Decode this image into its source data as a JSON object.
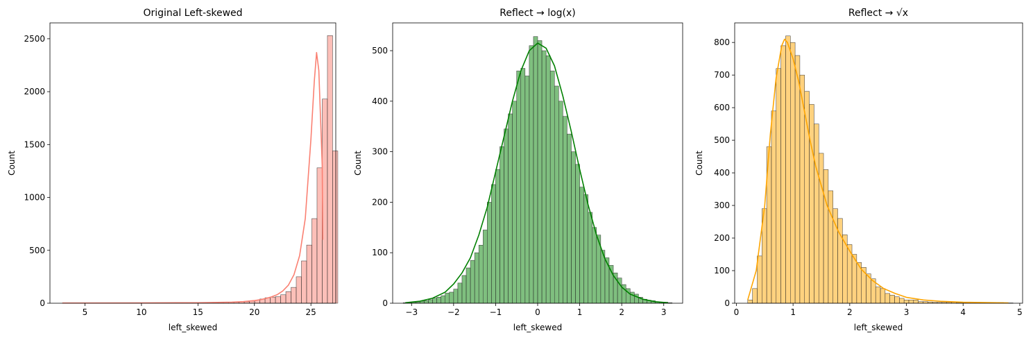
{
  "chart_data": [
    {
      "type": "bar",
      "subtype": "histogram-with-kde",
      "title": "Original Left-skewed",
      "xlabel": "left_skewed",
      "ylabel": "Count",
      "xlim": [
        1.9,
        27.2
      ],
      "ylim": [
        0,
        2650
      ],
      "xticks": [
        5,
        10,
        15,
        20,
        25
      ],
      "yticks": [
        0,
        500,
        1000,
        1500,
        2000,
        2500
      ],
      "bin_start": 3.0,
      "bin_width": 0.46,
      "counts": [
        2,
        2,
        2,
        2,
        2,
        2,
        2,
        2,
        2,
        2,
        2,
        2,
        2,
        2,
        2,
        2,
        2,
        2,
        2,
        2,
        2,
        2,
        2,
        3,
        3,
        4,
        4,
        5,
        5,
        6,
        7,
        8,
        9,
        10,
        12,
        14,
        20,
        28,
        40,
        52,
        58,
        62,
        80,
        110,
        150,
        250,
        400,
        550,
        800,
        1280,
        1930,
        2530,
        1440
      ],
      "kde_x": [
        3,
        10,
        15,
        18,
        19,
        20,
        20.5,
        21,
        21.5,
        22,
        22.5,
        23,
        23.5,
        24,
        24.5,
        25,
        25.3,
        25.5,
        25.7,
        26,
        26.05
      ],
      "kde_y": [
        2,
        3,
        5,
        10,
        15,
        25,
        33,
        45,
        60,
        80,
        115,
        170,
        270,
        450,
        800,
        1550,
        2100,
        2370,
        2200,
        1300,
        600
      ],
      "fill_color": "#fa8072",
      "edge_color": "#333333",
      "line_color": "#fa8072"
    },
    {
      "type": "bar",
      "subtype": "histogram-with-kde",
      "title": "Reflect → log(x)",
      "xlabel": "left_skewed",
      "ylabel": "Count",
      "xlim": [
        -3.45,
        3.45
      ],
      "ylim": [
        0,
        555
      ],
      "xticks": [
        -3,
        -2,
        -1,
        0,
        1,
        2,
        3
      ],
      "yticks": [
        0,
        100,
        200,
        300,
        400,
        500
      ],
      "bin_start": -3.2,
      "bin_width": 0.1,
      "counts": [
        1,
        1,
        2,
        2,
        4,
        5,
        7,
        10,
        12,
        15,
        20,
        22,
        28,
        40,
        55,
        70,
        85,
        100,
        115,
        145,
        200,
        235,
        265,
        310,
        345,
        375,
        400,
        460,
        465,
        450,
        510,
        528,
        520,
        500,
        490,
        460,
        430,
        400,
        370,
        335,
        300,
        275,
        230,
        215,
        180,
        150,
        135,
        105,
        90,
        75,
        60,
        50,
        37,
        29,
        22,
        18,
        12,
        8,
        6,
        5,
        3,
        2,
        2,
        1
      ],
      "kde_x": [
        -3.15,
        -2.8,
        -2.5,
        -2.2,
        -2,
        -1.8,
        -1.6,
        -1.4,
        -1.2,
        -1,
        -0.8,
        -0.6,
        -0.4,
        -0.2,
        0,
        0.2,
        0.4,
        0.6,
        0.8,
        1,
        1.2,
        1.4,
        1.6,
        1.8,
        2,
        2.2,
        2.5,
        2.8,
        3.1
      ],
      "kde_y": [
        1,
        4,
        10,
        22,
        38,
        60,
        90,
        135,
        190,
        260,
        330,
        400,
        460,
        500,
        515,
        505,
        470,
        410,
        340,
        265,
        195,
        135,
        88,
        55,
        32,
        18,
        8,
        3,
        1
      ],
      "fill_color": "#008000",
      "edge_color": "#333333",
      "line_color": "#008000"
    },
    {
      "type": "bar",
      "subtype": "histogram-with-kde",
      "title": "Reflect → √x",
      "xlabel": "left_skewed",
      "ylabel": "Count",
      "xlim": [
        -0.03,
        5.05
      ],
      "ylim": [
        0,
        860
      ],
      "xticks": [
        0,
        1,
        2,
        3,
        4,
        5
      ],
      "yticks": [
        0,
        100,
        200,
        300,
        400,
        500,
        600,
        700,
        800
      ],
      "bin_start": 0.2,
      "bin_width": 0.0836,
      "counts": [
        10,
        45,
        145,
        290,
        480,
        590,
        720,
        790,
        820,
        800,
        760,
        700,
        650,
        610,
        550,
        460,
        410,
        345,
        290,
        260,
        210,
        180,
        150,
        125,
        110,
        90,
        75,
        50,
        45,
        30,
        25,
        20,
        15,
        10,
        10,
        10,
        5,
        5,
        4,
        3,
        3,
        3,
        3,
        3,
        2,
        2,
        2,
        2,
        2,
        2,
        2,
        2,
        2,
        2,
        1,
        1
      ],
      "kde_x": [
        0.2,
        0.35,
        0.5,
        0.6,
        0.7,
        0.8,
        0.85,
        0.9,
        1,
        1.1,
        1.2,
        1.3,
        1.4,
        1.5,
        1.6,
        1.8,
        2,
        2.2,
        2.4,
        2.6,
        2.8,
        3,
        3.3,
        3.6,
        4,
        4.4,
        4.8
      ],
      "kde_y": [
        10,
        100,
        300,
        520,
        690,
        790,
        810,
        800,
        750,
        680,
        590,
        500,
        420,
        360,
        300,
        220,
        160,
        105,
        70,
        45,
        30,
        18,
        10,
        6,
        3,
        2,
        1
      ],
      "fill_color": "#ffa500",
      "edge_color": "#333333",
      "line_color": "#ffa500"
    }
  ]
}
